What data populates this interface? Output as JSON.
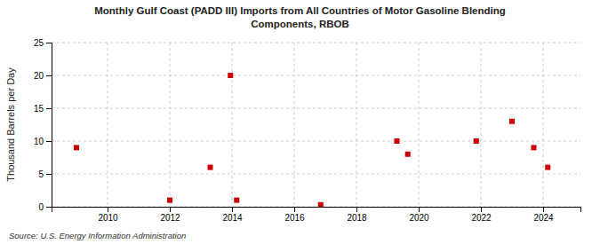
{
  "chart_data": {
    "type": "scatter",
    "title": "Monthly Gulf Coast (PADD III) Imports from  All Countries of Motor Gasoline Blending\nComponents,  RBOB",
    "ylabel": "Thousand Barrels per Day",
    "annotations": [
      "Source: U.S. Energy Information Administration"
    ],
    "x": [
      2009.0,
      2012.0,
      2013.3,
      2013.95,
      2014.15,
      2016.85,
      2019.3,
      2019.65,
      2021.85,
      2023.0,
      2023.7,
      2024.15
    ],
    "values": [
      9.0,
      1.0,
      6.0,
      20.0,
      1.0,
      0.3,
      10.0,
      8.0,
      10.0,
      13.0,
      9.0,
      6.0
    ],
    "color": "#cc0000",
    "marker": "square",
    "xlim": [
      2008.2,
      2025.2
    ],
    "xticks": [
      2010,
      2012,
      2014,
      2016,
      2018,
      2020,
      2022,
      2024
    ],
    "ylim": [
      0,
      25
    ],
    "yticks": [
      0,
      5,
      10,
      15,
      20,
      25
    ],
    "grid": true
  }
}
